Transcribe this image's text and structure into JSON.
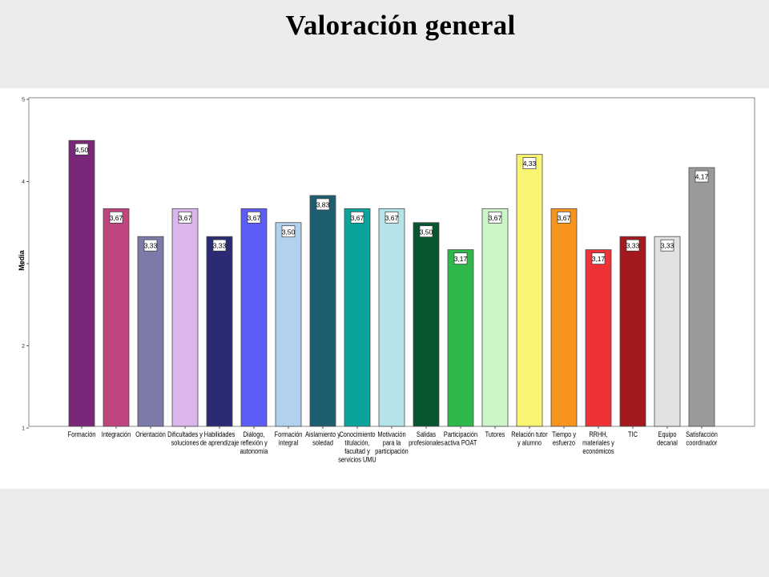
{
  "page": {
    "title": "Valoración general"
  },
  "chart_data": {
    "type": "bar",
    "ylabel": "Media",
    "ylim": [
      1,
      5
    ],
    "yticks": [
      "1",
      "2",
      "3",
      "4",
      "5"
    ],
    "legend": "none",
    "grid": false,
    "categories": [
      [
        "Formación"
      ],
      [
        "Integración"
      ],
      [
        "Orientación"
      ],
      [
        "Dificultades y",
        "soluciones"
      ],
      [
        "Habilidades",
        "de aprendizaje"
      ],
      [
        "Diálogo,",
        "reflexión y",
        "autonomía"
      ],
      [
        "Formación",
        "integral"
      ],
      [
        "Aislamiento y",
        "soledad"
      ],
      [
        "Conocimiento",
        "titulación,",
        "facultad y",
        "servicios UMU"
      ],
      [
        "Motivación",
        "para la",
        "participación"
      ],
      [
        "Salidas",
        "profesionales"
      ],
      [
        "Participación",
        "activa POAT"
      ],
      [
        "Tutores"
      ],
      [
        "Relación tutor",
        "y alumno"
      ],
      [
        "Tiempo y",
        "esfuerzo"
      ],
      [
        "RRHH,",
        "materiales y",
        "económicos"
      ],
      [
        "TIC"
      ],
      [
        "Equipo",
        "decanal"
      ],
      [
        "Satisfacción",
        "coordinador"
      ]
    ],
    "values": [
      4.5,
      3.67,
      3.33,
      3.67,
      3.33,
      3.67,
      3.5,
      3.83,
      3.67,
      3.67,
      3.5,
      3.17,
      3.67,
      4.33,
      3.67,
      3.17,
      3.33,
      3.33,
      4.17
    ],
    "data_labels": [
      "4,50",
      "3,67",
      "3,33",
      "3,67",
      "3,33",
      "3,67",
      "3,50",
      "3,83",
      "3,67",
      "3,67",
      "3,50",
      "3,17",
      "3,67",
      "4,33",
      "3,67",
      "3,17",
      "3,33",
      "3,33",
      "4,17"
    ],
    "colors": [
      "#7b2779",
      "#c0457f",
      "#7b7aa8",
      "#dbb6ec",
      "#2a2b72",
      "#5c5cf6",
      "#b1d1ee",
      "#1f5e70",
      "#0aa49d",
      "#b4e4e7",
      "#07562f",
      "#2eb84b",
      "#ccf6c8",
      "#f8f572",
      "#f6941d",
      "#ee3237",
      "#a3191d",
      "#e2e2e2",
      "#9a9a9a"
    ]
  }
}
